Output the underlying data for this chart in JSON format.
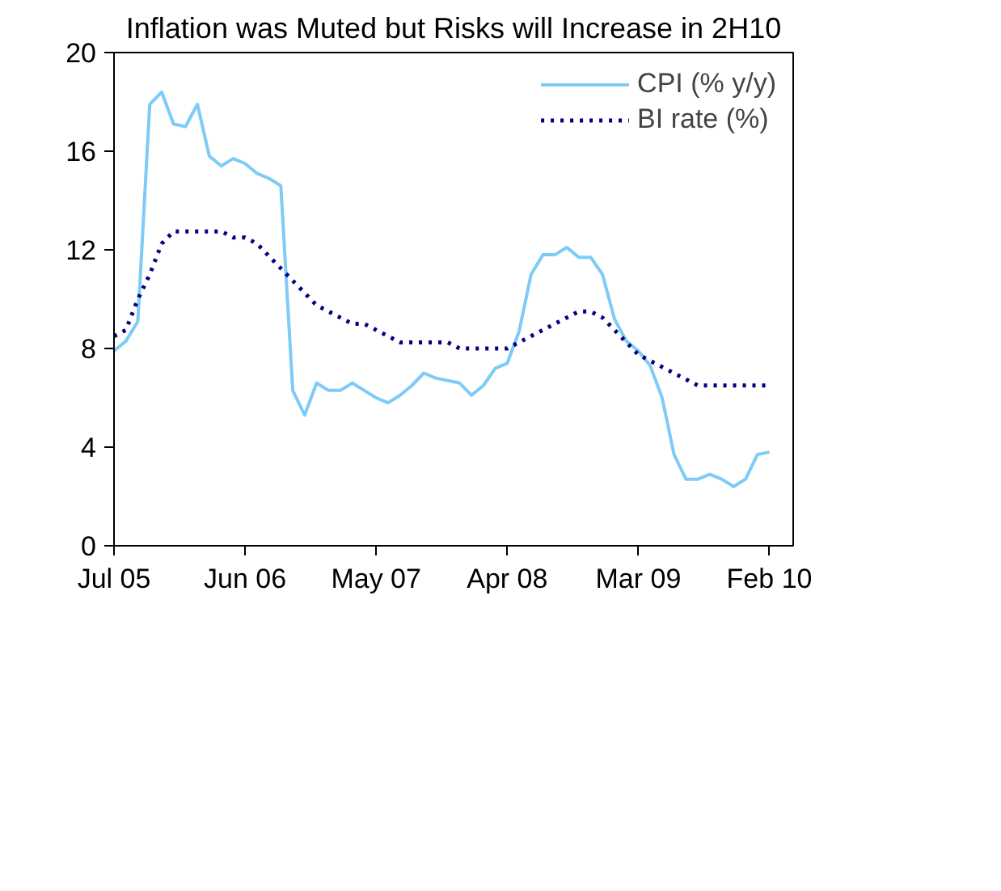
{
  "chart_data": {
    "type": "line",
    "title": "Inflation was Muted but Risks will Increase in 2H10",
    "categories": [
      "Jul 05",
      null,
      null,
      null,
      null,
      null,
      null,
      null,
      null,
      null,
      null,
      "Jun 06",
      null,
      null,
      null,
      null,
      null,
      null,
      null,
      null,
      null,
      null,
      "May 07",
      null,
      null,
      null,
      null,
      null,
      null,
      null,
      null,
      null,
      null,
      "Apr 08",
      null,
      null,
      null,
      null,
      null,
      null,
      null,
      null,
      null,
      null,
      "Mar 09",
      null,
      null,
      null,
      null,
      null,
      null,
      null,
      null,
      null,
      null,
      "Feb 10"
    ],
    "series": [
      {
        "name": "CPI (% y/y)",
        "color": "#7fcbf7",
        "line_style": "solid",
        "values": [
          7.9,
          8.3,
          9.1,
          17.9,
          18.4,
          17.1,
          17.0,
          17.9,
          15.8,
          15.4,
          15.7,
          15.5,
          15.1,
          14.9,
          14.6,
          6.3,
          5.3,
          6.6,
          6.3,
          6.3,
          6.6,
          6.3,
          6.0,
          5.8,
          6.1,
          6.5,
          7.0,
          6.8,
          6.7,
          6.6,
          6.1,
          6.5,
          7.2,
          7.4,
          8.7,
          11.0,
          11.8,
          11.8,
          12.1,
          11.7,
          11.7,
          11.0,
          9.2,
          8.3,
          7.9,
          7.3,
          6.0,
          3.7,
          2.7,
          2.7,
          2.9,
          2.7,
          2.4,
          2.7,
          3.7,
          3.8
        ]
      },
      {
        "name": "BI rate (%)",
        "color": "#000080",
        "line_style": "dotted",
        "values": [
          8.5,
          8.75,
          10.0,
          11.0,
          12.25,
          12.75,
          12.75,
          12.75,
          12.75,
          12.75,
          12.5,
          12.5,
          12.25,
          11.75,
          11.25,
          10.75,
          10.25,
          9.75,
          9.5,
          9.25,
          9.0,
          9.0,
          8.75,
          8.5,
          8.25,
          8.25,
          8.25,
          8.25,
          8.25,
          8.0,
          8.0,
          8.0,
          8.0,
          8.0,
          8.25,
          8.5,
          8.75,
          9.0,
          9.25,
          9.5,
          9.5,
          9.25,
          8.75,
          8.25,
          7.75,
          7.5,
          7.25,
          7.0,
          6.75,
          6.5,
          6.5,
          6.5,
          6.5,
          6.5,
          6.5,
          6.5
        ]
      }
    ],
    "ylim": [
      0,
      20
    ],
    "yticks": [
      0,
      4,
      8,
      12,
      16,
      20
    ],
    "grid": false,
    "legend": "top right"
  }
}
